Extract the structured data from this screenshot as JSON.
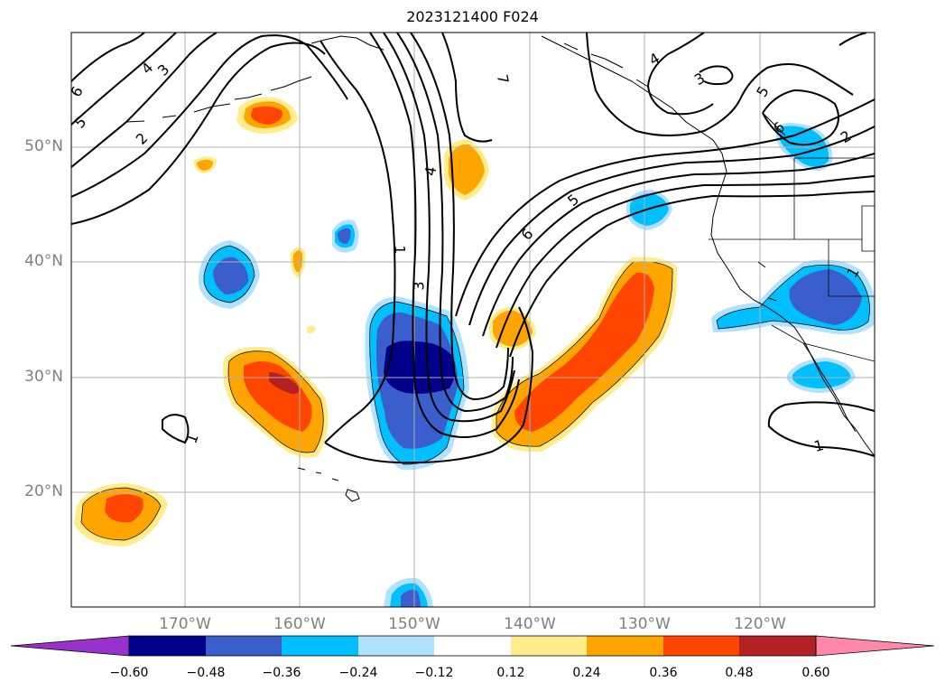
{
  "title": "2023121400 F024",
  "axes": {
    "latitude_labels": [
      "50°N",
      "40°N",
      "30°N",
      "20°N"
    ],
    "longitude_labels": [
      "170°W",
      "160°W",
      "150°W",
      "140°W",
      "130°W",
      "120°W"
    ]
  },
  "colorbar": {
    "colors": [
      "#9932cc",
      "#00008b",
      "#3a5fcd",
      "#00bfff",
      "#b0e2ff",
      "#ffffff",
      "#ffec8b",
      "#ffa500",
      "#ff4500",
      "#b22222",
      "#ff88aa"
    ],
    "tick_labels": [
      "−0.60",
      "−0.48",
      "−0.36",
      "−0.24",
      "−0.12",
      "0.12",
      "0.24",
      "0.36",
      "0.48",
      "0.60"
    ]
  },
  "contour_labels": [
    "4",
    "3",
    "2",
    "5",
    "6",
    "7",
    "4",
    "3",
    "5",
    "6",
    "2",
    "1",
    "4",
    "3",
    "5",
    "6",
    "1",
    "1",
    "1"
  ],
  "colors": {
    "grid": "#b0b0b0",
    "contour": "#000000",
    "axis_label": "#808080"
  }
}
